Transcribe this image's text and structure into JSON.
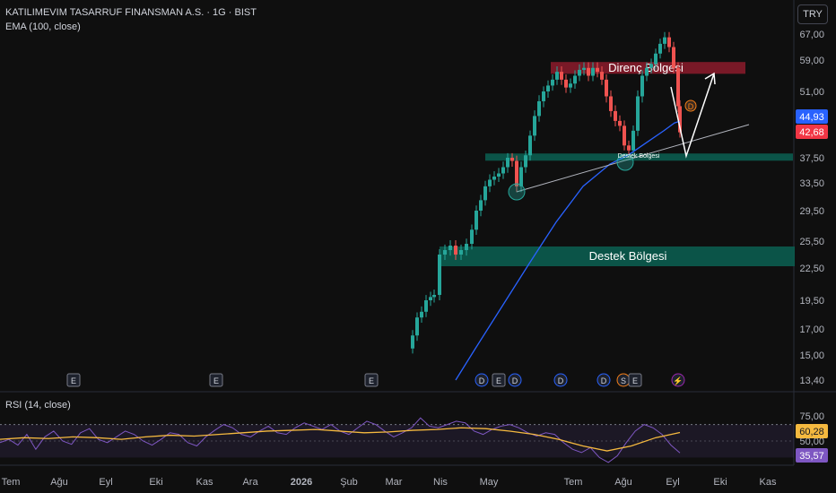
{
  "header": {
    "symbol_line": "KATILIMEVIM TASARRUF FINANSMAN A.S. · 1G · BIST",
    "indicator_line": "EMA (100, close)"
  },
  "currency_button": "TRY",
  "price_axis": {
    "ticks": [
      "67,00",
      "59,00",
      "51,00",
      "44,93",
      "42,68",
      "37,50",
      "33,50",
      "29,50",
      "25,50",
      "22,50",
      "19,50",
      "17,00",
      "15,00",
      "13,40"
    ],
    "ema_badge": "44,93",
    "price_badge": "42,68"
  },
  "rsi": {
    "label": "RSI (14, close)",
    "ticks": [
      "75,00",
      "50,00"
    ],
    "ma_badge": "60,28",
    "rsi_badge": "35,57"
  },
  "time_axis": [
    "Tem",
    "Ağu",
    "Eyl",
    "Eki",
    "Kas",
    "Ara",
    "2026",
    "Şub",
    "Mar",
    "Nis",
    "May",
    "Tem",
    "Ağu",
    "Eyl",
    "Eki",
    "Kas"
  ],
  "zones": {
    "resistance_label": "Direnç Bölgesi",
    "small_support_label": "Destek Bölgesi",
    "support_label": "Destek Bölgesi"
  },
  "event_markers": [
    "E",
    "E",
    "E",
    "D",
    "E",
    "D",
    "D",
    "D",
    "S",
    "E",
    "⚡"
  ],
  "dividend_marker": "D",
  "colors": {
    "up": "#26a69a",
    "down": "#ef5350",
    "ema": "#2962ff",
    "rsi_line": "#7e57c2",
    "rsi_ma": "#f5b93f",
    "resistance_zone": "#8c1b2c",
    "support_zone": "#0b5c4f",
    "background": "#0f0f0f",
    "ema_badge": "#2962ff",
    "price_badge": "#f23645"
  },
  "chart_data": {
    "type": "candlestick",
    "ema_period": 100,
    "rsi_period": 14,
    "last_price": 42.68,
    "last_ema": 44.93,
    "rsi_ma_last": 60.28,
    "rsi_last": 35.57,
    "price_range": [
      13.4,
      67.0
    ],
    "resistance_zone": [
      55.5,
      58.5
    ],
    "small_support_zone": [
      37.0,
      38.0
    ],
    "support_zone": [
      23.3,
      25.0
    ]
  }
}
